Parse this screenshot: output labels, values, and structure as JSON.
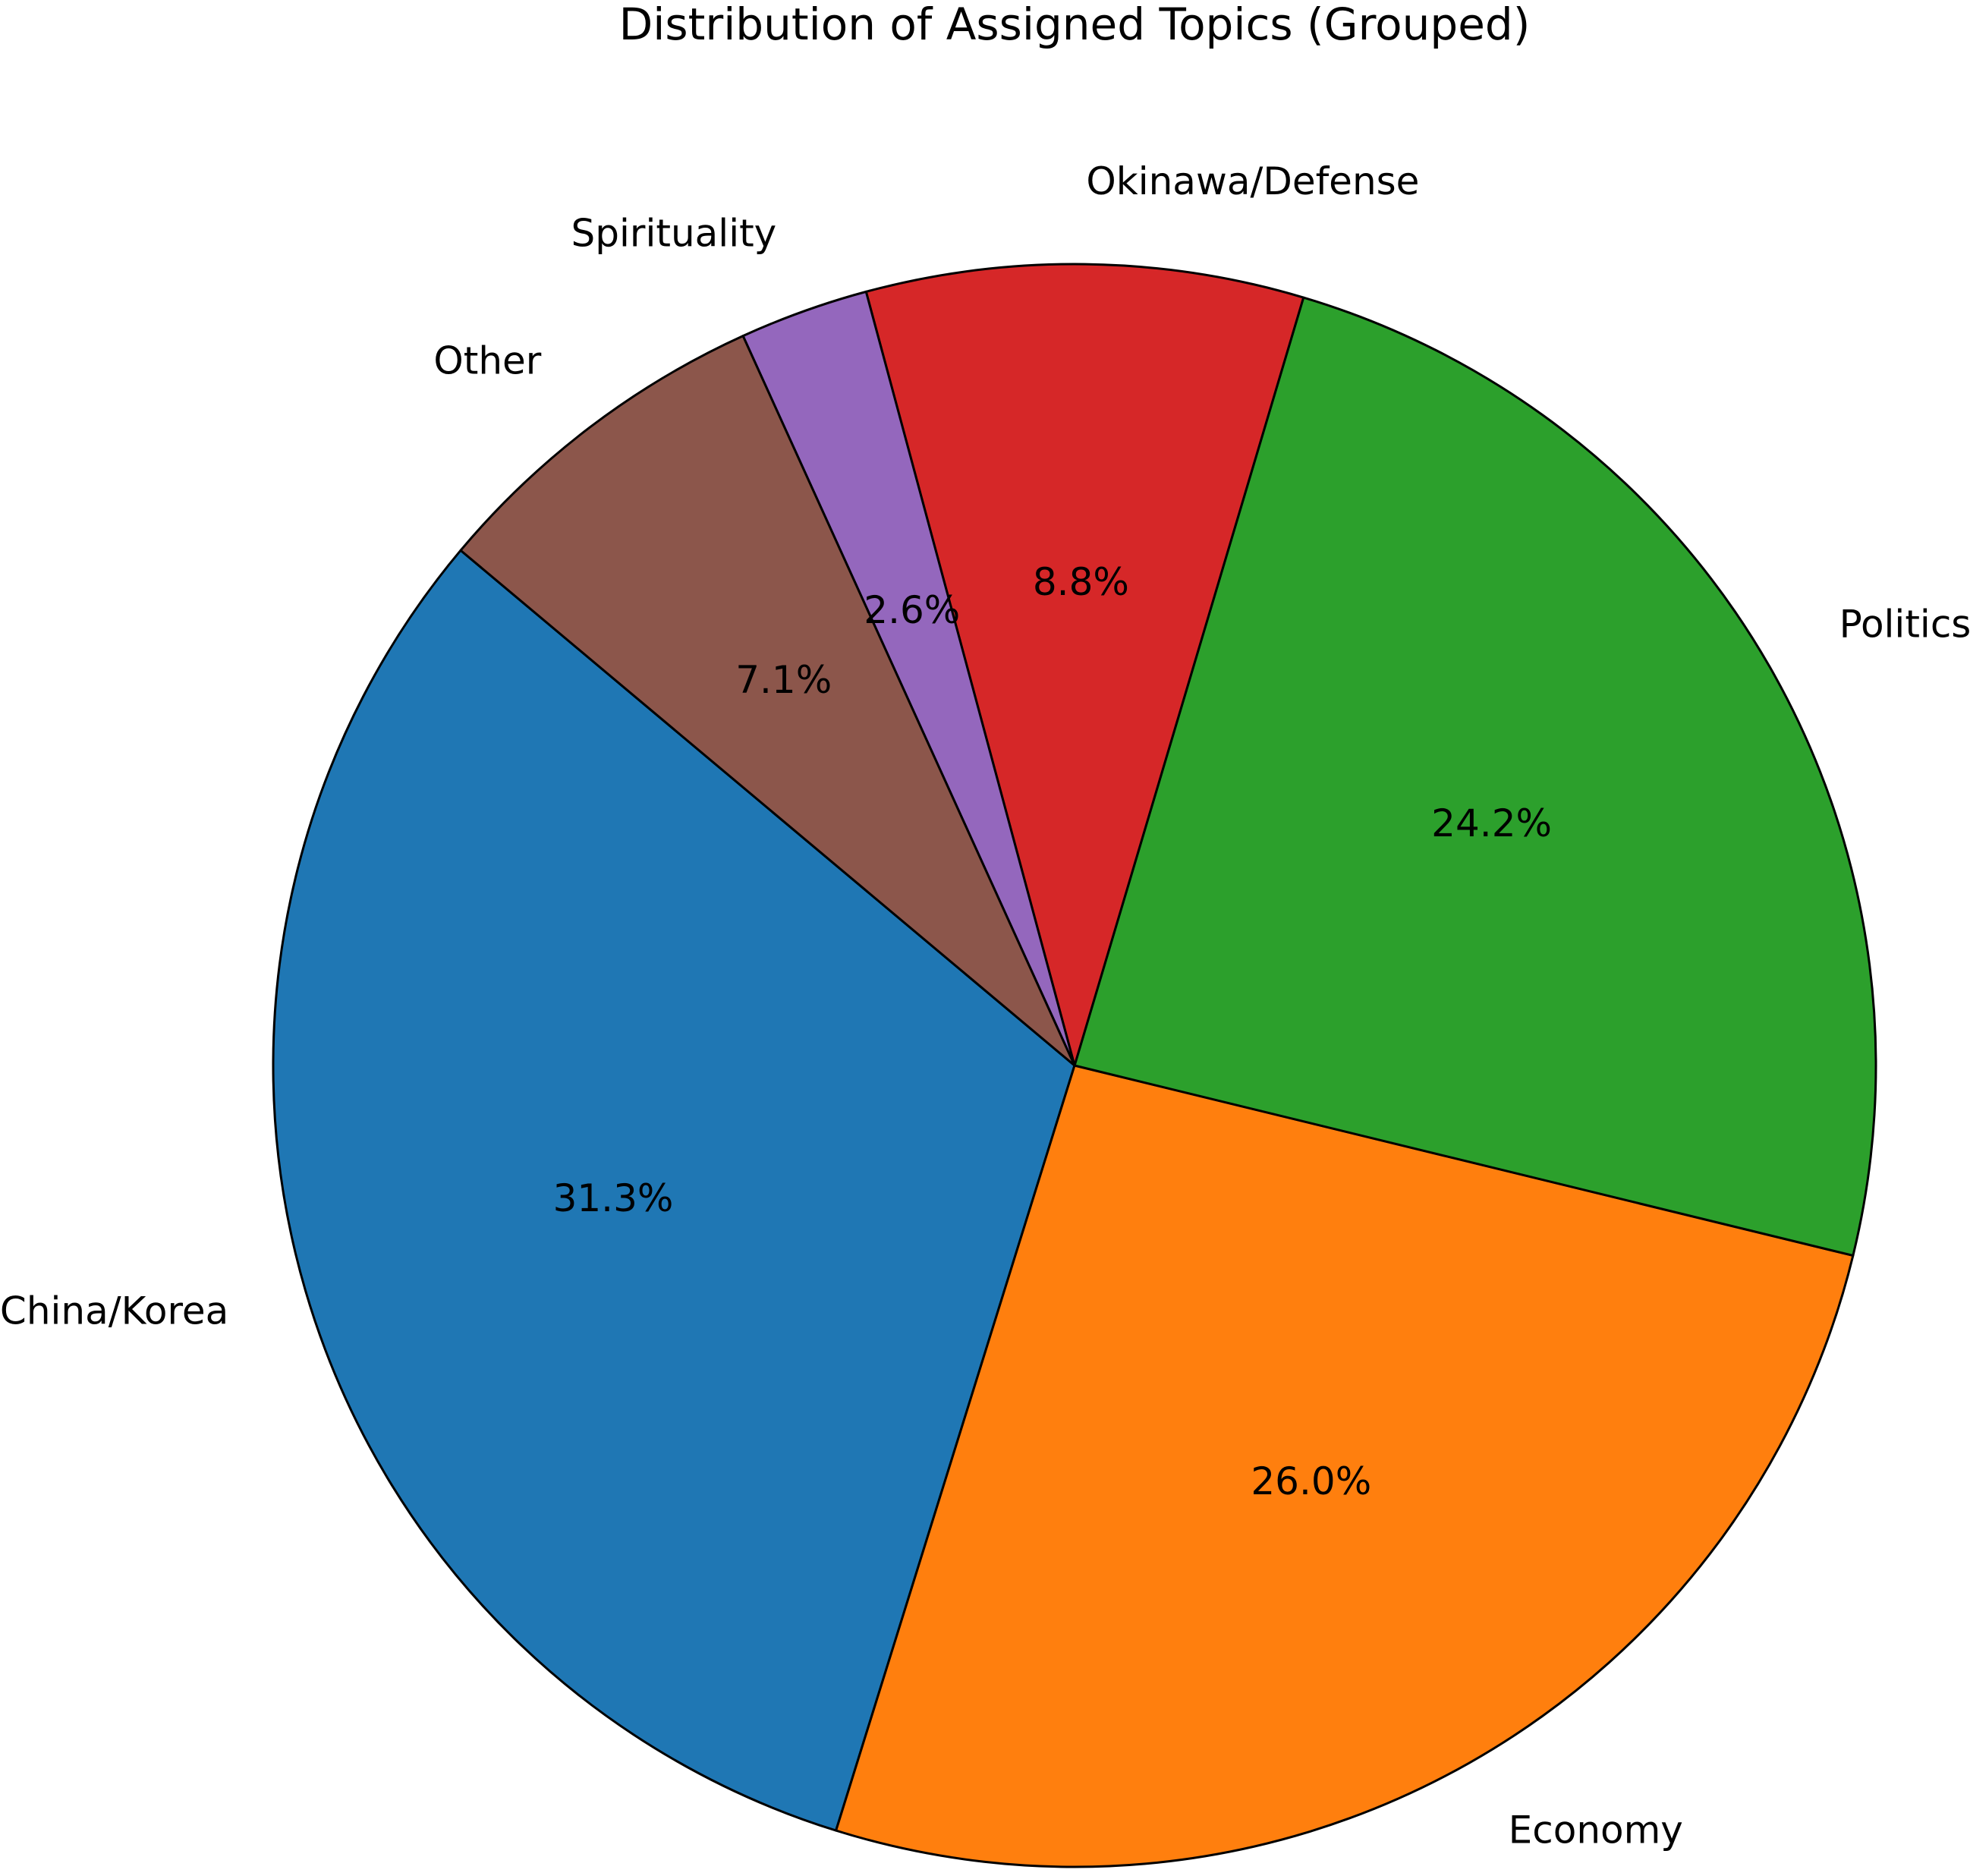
{
  "chart_data": {
    "type": "pie",
    "title": "Distribution of Assigned Topics (Grouped)",
    "categories": [
      "China/Korea",
      "Economy",
      "Politics",
      "Okinawa/Defense",
      "Spirituality",
      "Other"
    ],
    "values": [
      31.3,
      26.0,
      24.2,
      8.8,
      2.6,
      7.1
    ],
    "value_labels": [
      "31.3%",
      "26.0%",
      "24.2%",
      "8.8%",
      "2.6%",
      "7.1%"
    ],
    "colors": [
      "#1f77b4",
      "#ff7f0e",
      "#2ca02c",
      "#d62728",
      "#9467bd",
      "#8c564b"
    ]
  }
}
